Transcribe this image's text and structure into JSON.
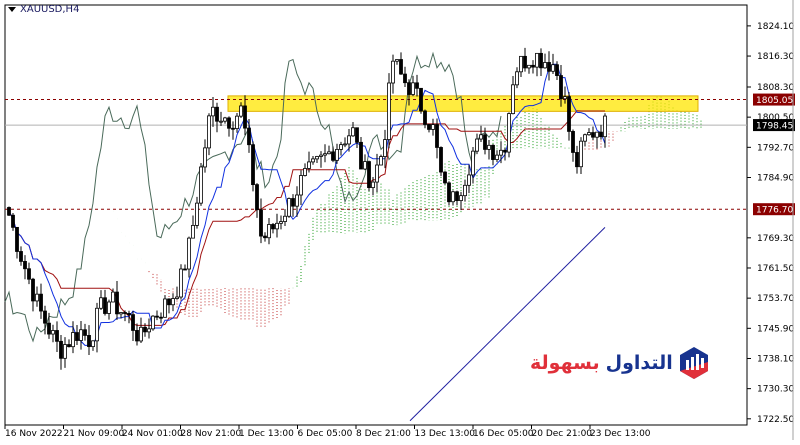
{
  "window": {
    "symbol_title": "XAUUSD,H4"
  },
  "logo": {
    "text_red": "بسهولة",
    "text_blue": "التداول",
    "colors": {
      "red": "#e0303a",
      "blue": "#17338f"
    }
  },
  "chart_data": {
    "type": "candlestick",
    "title": "XAUUSD,H4",
    "ylim": [
      1720.9,
      1829.5
    ],
    "y_ticks": [
      "1824.10",
      "1816.30",
      "1808.30",
      "1800.50",
      "1792.70",
      "1784.90",
      "1769.30",
      "1761.50",
      "1753.70",
      "1745.90",
      "1738.10",
      "1730.30",
      "1722.50"
    ],
    "x_ticks": [
      "16 Nov 2022",
      "21 Nov 09:00",
      "24 Nov 01:00",
      "28 Nov 21:00",
      "1 Dec 13:00",
      "6 Dec 05:00",
      "8 Dec 21:00",
      "13 Dec 13:00",
      "16 Dec 05:00",
      "20 Dec 21:00",
      "23 Dec 13:00"
    ],
    "approx_close_path": [
      1775.2,
      1766.2,
      1758.4,
      1750.7,
      1745.5,
      1740.3,
      1742.9,
      1745.5,
      1742.9,
      1750.7,
      1753.3,
      1750.7,
      1748.1,
      1742.9,
      1748.1,
      1750.7,
      1753.3,
      1758.4,
      1768.8,
      1786.9,
      1802.4,
      1801.1,
      1799.8,
      1802.4,
      1786.9,
      1768.8,
      1771.4,
      1775.2,
      1779.1,
      1784.3,
      1786.9,
      1789.5,
      1792.0,
      1794.6,
      1797.2,
      1786.9,
      1784.3,
      1792.0,
      1815.3,
      1810.1,
      1807.6,
      1802.4,
      1797.2,
      1781.7,
      1779.1,
      1784.3,
      1792.0,
      1794.6,
      1792.0,
      1792.0,
      1812.7,
      1815.3,
      1816.6,
      1815.3,
      1814.0,
      1805.0,
      1786.9,
      1794.6,
      1797.2,
      1798.5
    ],
    "indicators": [
      "Ichimoku (tenkan blue, kijun red, chikou gray-green, cloud green/red dotted)",
      "moving average (navy)"
    ],
    "moving_average": {
      "from": 1722.0,
      "to": 1772.0
    },
    "levels": [
      {
        "price": "1805.05",
        "style": "dotted",
        "color": "#8b0000"
      },
      {
        "price": "1776.70",
        "style": "dotted",
        "color": "#8b0000"
      }
    ],
    "current_price": "1798.45",
    "highlight_zone": {
      "low": 1802.0,
      "high": 1806.0,
      "color": "#ffe600"
    },
    "grid": false
  }
}
